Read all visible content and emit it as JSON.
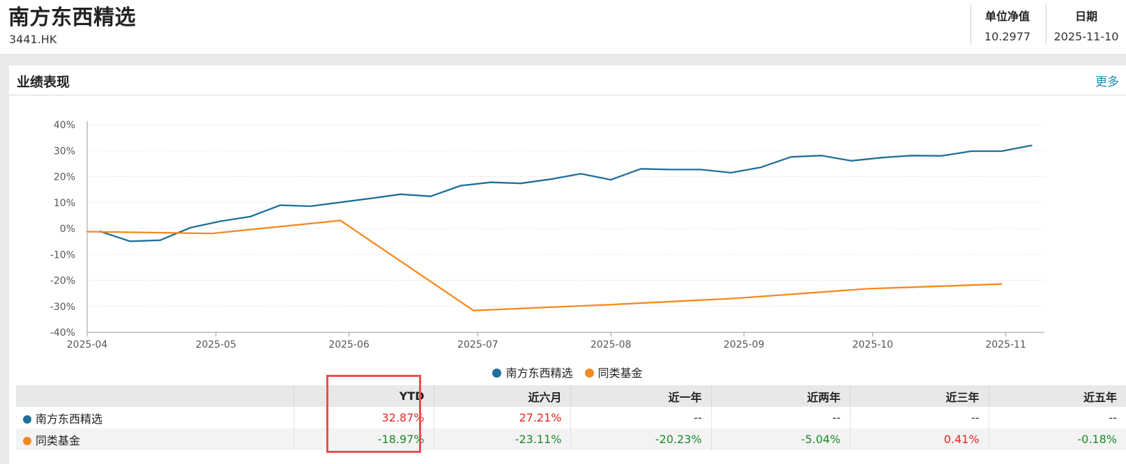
{
  "header": {
    "title": "南方东西精选",
    "code": "3441.HK",
    "nav_label": "单位净值",
    "nav_value": "10.2977",
    "date_label": "日期",
    "date_value": "2025-11-10"
  },
  "panel": {
    "title": "业绩表现",
    "more_label": "更多"
  },
  "colors": {
    "fund": "#1f6f99",
    "peer": "#f5891e",
    "positive": "#e8241f",
    "negative": "#1c8a2a",
    "highlight": "#e5504f"
  },
  "chart_data": {
    "type": "line",
    "y_ticks": [
      "40%",
      "30%",
      "20%",
      "10%",
      "0%",
      "-10%",
      "-20%",
      "-30%",
      "-40%"
    ],
    "x_ticks": [
      "2025-04",
      "2025-05",
      "2025-06",
      "2025-07",
      "2025-08",
      "2025-09",
      "2025-10",
      "2025-11"
    ],
    "ylim": [
      -40,
      40
    ],
    "xlim": [
      "2025-04-01",
      "2025-11-10"
    ],
    "grid": true,
    "legend_position": "bottom-center",
    "series": [
      {
        "name": "南方东西精选",
        "points": [
          [
            "2025-04-04",
            -1.1
          ],
          [
            "2025-04-11",
            -4.9
          ],
          [
            "2025-04-18",
            -4.5
          ],
          [
            "2025-04-25",
            0.3
          ],
          [
            "2025-05-02",
            2.8
          ],
          [
            "2025-05-09",
            4.6
          ],
          [
            "2025-05-16",
            9.0
          ],
          [
            "2025-05-23",
            8.6
          ],
          [
            "2025-06-06",
            11.6
          ],
          [
            "2025-06-13",
            13.2
          ],
          [
            "2025-06-20",
            12.4
          ],
          [
            "2025-06-27",
            16.5
          ],
          [
            "2025-07-04",
            17.8
          ],
          [
            "2025-07-11",
            17.4
          ],
          [
            "2025-07-18",
            19.0
          ],
          [
            "2025-07-25",
            21.1
          ],
          [
            "2025-08-01",
            18.8
          ],
          [
            "2025-08-08",
            23.0
          ],
          [
            "2025-08-15",
            22.7
          ],
          [
            "2025-08-22",
            22.7
          ],
          [
            "2025-08-29",
            21.5
          ],
          [
            "2025-09-05",
            23.6
          ],
          [
            "2025-09-12",
            27.6
          ],
          [
            "2025-09-19",
            28.1
          ],
          [
            "2025-09-26",
            26.1
          ],
          [
            "2025-10-03",
            27.3
          ],
          [
            "2025-10-10",
            28.1
          ],
          [
            "2025-10-17",
            28.0
          ],
          [
            "2025-10-24",
            29.8
          ],
          [
            "2025-10-31",
            29.8
          ],
          [
            "2025-11-07",
            32.0
          ]
        ]
      },
      {
        "name": "同类基金",
        "points": [
          [
            "2025-04-01",
            -1.2
          ],
          [
            "2025-04-30",
            -1.9
          ],
          [
            "2025-05-30",
            3.1
          ],
          [
            "2025-06-30",
            -31.6
          ],
          [
            "2025-07-31",
            -29.4
          ],
          [
            "2025-08-29",
            -27.0
          ],
          [
            "2025-09-30",
            -23.2
          ],
          [
            "2025-10-31",
            -21.4
          ]
        ]
      }
    ]
  },
  "table": {
    "headers": [
      "",
      "YTD",
      "近六月",
      "近一年",
      "近两年",
      "近三年",
      "近五年"
    ],
    "rows": [
      {
        "name": "南方东西精选",
        "values": [
          "32.87%",
          "27.21%",
          "--",
          "--",
          "--",
          "--"
        ],
        "signs": [
          "pos",
          "pos",
          "dash",
          "dash",
          "dash",
          "dash"
        ]
      },
      {
        "name": "同类基金",
        "values": [
          "-18.97%",
          "-23.11%",
          "-20.23%",
          "-5.04%",
          "0.41%",
          "-0.18%"
        ],
        "signs": [
          "neg",
          "neg",
          "neg",
          "neg",
          "pos",
          "neg"
        ]
      }
    ]
  }
}
